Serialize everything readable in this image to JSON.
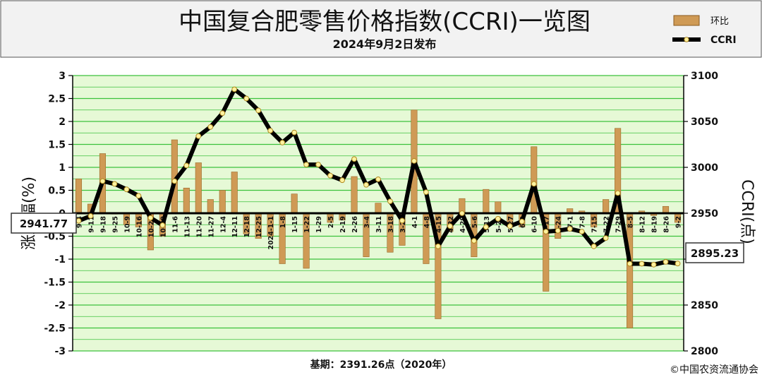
{
  "header": {
    "title": "中国复合肥零售价格指数(CCRI)一览图",
    "subtitle": "2024年9月2日发布"
  },
  "footer": {
    "base": "基期：2391.26点（2020年）",
    "copyright": "©中国农资流通协会"
  },
  "legend": {
    "bar_label": "环比",
    "line_label": "CCRI"
  },
  "callouts": {
    "start_value": "2941.77",
    "end_value": "2895.23"
  },
  "colors": {
    "plot_bg": "#e6f9d6",
    "grid": "#3cc23c",
    "bar": "#cf9a55",
    "line": "#000000",
    "marker_fill": "#fff2a0"
  },
  "chart_data": {
    "type": "bar+line",
    "title": "中国复合肥零售价格指数(CCRI)一览图",
    "ylabel": "涨跌幅(%)",
    "y2label": "CCRI(点)",
    "ylim": [
      -3,
      3
    ],
    "y2lim": [
      2800,
      3100
    ],
    "yticks": [
      "3",
      "2.5",
      "2",
      "1.5",
      "1",
      "0.5",
      "0",
      "-0.5",
      "-1",
      "-1.5",
      "-2",
      "-2.5",
      "-3"
    ],
    "y2ticks": [
      "3100",
      "3050",
      "3000",
      "2950",
      "2900",
      "2850",
      "2800"
    ],
    "grid": true,
    "legend_position": "top-right",
    "categories": [
      "9-4",
      "9-11",
      "9-18",
      "9-25",
      "10-9",
      "10-16",
      "10-23",
      "10-30",
      "11-6",
      "11-13",
      "11-20",
      "11-27",
      "12-4",
      "12-11",
      "12-18",
      "12-25",
      "2024-1-1",
      "1-8",
      "1-15",
      "1-22",
      "1-29",
      "2-5",
      "2-19",
      "2-26",
      "3-4",
      "3-11",
      "3-18",
      "3-25",
      "4-1",
      "4-8",
      "4-15",
      "4-22",
      "4-29",
      "5-6",
      "5-13",
      "5-20",
      "5-27",
      "6-3",
      "6-10",
      "6-17",
      "6-24",
      "7-1",
      "7-8",
      "7-15",
      "7-22",
      "7-29",
      "8-5",
      "8-12",
      "8-19",
      "8-26",
      "9-2"
    ],
    "series": [
      {
        "name": "环比",
        "kind": "bar",
        "axis": "left",
        "values": [
          0.75,
          0.2,
          1.3,
          -0.02,
          -0.25,
          -0.3,
          -0.8,
          -0.5,
          1.6,
          0.55,
          1.1,
          0.3,
          0.5,
          0.9,
          -0.45,
          -0.55,
          -0.5,
          -1.1,
          0.42,
          -1.2,
          -0.02,
          -0.2,
          -0.15,
          0.8,
          -0.95,
          0.22,
          -0.85,
          -0.7,
          2.25,
          -1.1,
          -2.3,
          -0.4,
          0.32,
          -0.95,
          0.52,
          0.25,
          -0.3,
          -0.3,
          1.45,
          -1.7,
          -0.55,
          0.1,
          0.05,
          -0.3,
          0.3,
          1.85,
          -2.5,
          0.05,
          -0.05,
          0.15,
          -0.2
        ]
      },
      {
        "name": "CCRI",
        "kind": "line",
        "axis": "right",
        "values": [
          2941.77,
          2947,
          2985,
          2982,
          2976,
          2969,
          2945,
          2937,
          2985,
          3002,
          3034,
          3044,
          3059,
          3085,
          3075,
          3062,
          3040,
          3027,
          3038,
          3003,
          3003,
          2991,
          2986,
          3009,
          2981,
          2987,
          2963,
          2942,
          3007,
          2973,
          2914,
          2936,
          2950,
          2920,
          2935,
          2944,
          2936,
          2941,
          2982,
          2930,
          2931,
          2933,
          2930,
          2914,
          2923,
          2972,
          2895,
          2895,
          2894,
          2897,
          2895.23
        ]
      }
    ]
  }
}
